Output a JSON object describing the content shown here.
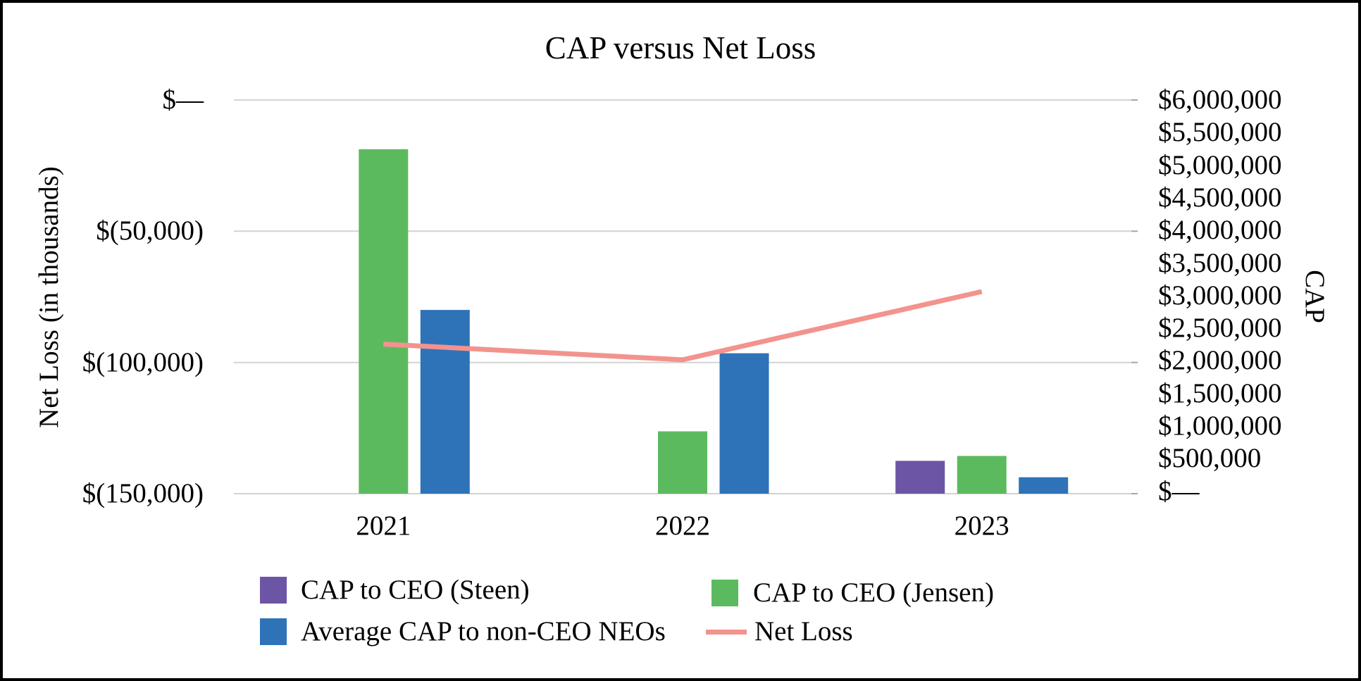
{
  "title": "CAP versus Net Loss",
  "axes": {
    "left": {
      "title": "Net Loss (in thousands)",
      "ticks": [
        "$—",
        "$(50,000)",
        "$(100,000)",
        "$(150,000)"
      ]
    },
    "right": {
      "title": "CAP",
      "ticks": [
        "$6,000,000",
        "$5,500,000",
        "$5,000,000",
        "$4,500,000",
        "$4,000,000",
        "$3,500,000",
        "$3,000,000",
        "$2,500,000",
        "$2,000,000",
        "$1,500,000",
        "$1,000,000",
        "$500,000",
        "$—"
      ]
    },
    "x": {
      "categories": [
        "2021",
        "2022",
        "2023"
      ]
    }
  },
  "legend": {
    "items": [
      {
        "label": "CAP to CEO (Steen)",
        "swatch": "square",
        "color": "#6C55A4"
      },
      {
        "label": "CAP to CEO (Jensen)",
        "swatch": "square",
        "color": "#5CBA5E"
      },
      {
        "label": "Average CAP to non-CEO NEOs",
        "swatch": "square",
        "color": "#2E73B8"
      },
      {
        "label": "Net Loss",
        "swatch": "line",
        "color": "#F3938D"
      }
    ]
  },
  "colors": {
    "steen_purple": "#6C55A4",
    "jensen_green": "#5CBA5E",
    "neo_blue": "#2E73B8",
    "net_loss_salmon": "#F3938D",
    "gridline": "#D3D3D3",
    "axis_tick": "#A6A6A6",
    "text": "#000000",
    "background": "#FFFFFF",
    "border": "#000000"
  },
  "chart_data": {
    "type": "bar+line combo",
    "title": "CAP versus Net Loss",
    "categories": [
      "2021",
      "2022",
      "2023"
    ],
    "series": [
      {
        "name": "CAP to CEO (Steen)",
        "type": "bar",
        "axis": "right",
        "color": "#6C55A4",
        "values": [
          null,
          null,
          500000
        ]
      },
      {
        "name": "CAP to CEO (Jensen)",
        "type": "bar",
        "axis": "right",
        "color": "#5CBA5E",
        "values": [
          5250000,
          950000,
          575000
        ]
      },
      {
        "name": "Average CAP to non-CEO NEOs",
        "type": "bar",
        "axis": "right",
        "color": "#2E73B8",
        "values": [
          2800000,
          2140000,
          250000
        ]
      },
      {
        "name": "Net Loss",
        "type": "line",
        "axis": "left",
        "color": "#F3938D",
        "values": [
          -93000,
          -99000,
          -73000
        ]
      }
    ],
    "left_axis": {
      "label": "Net Loss (in thousands)",
      "range": [
        -150000,
        0
      ],
      "tick_step": 50000,
      "tick_format": "$(#,###) negative in parentheses"
    },
    "right_axis": {
      "label": "CAP",
      "range": [
        0,
        6000000
      ],
      "tick_step": 500000,
      "tick_format": "$#,###"
    },
    "grid": "horizontal-only",
    "legend_position": "bottom"
  }
}
